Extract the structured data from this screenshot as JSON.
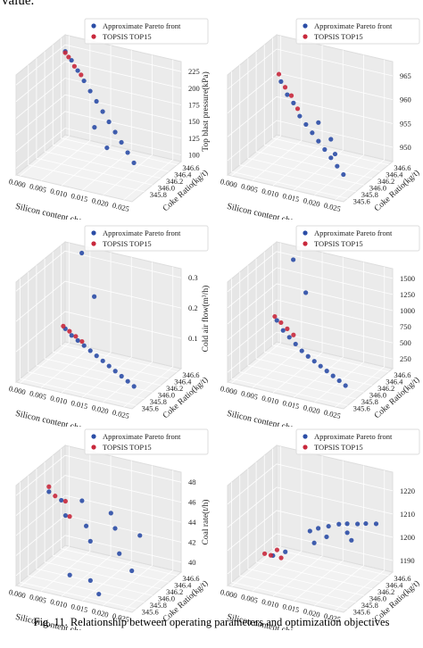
{
  "page_text": "value.",
  "caption": "Fig. 11. Relationship between operating parameters and optimization objectives",
  "chart_data": [
    {
      "type": "scatter3d",
      "xlabel": "Silicon content change(%)",
      "ylabel": "Coke Ratio(kg/t)",
      "zlabel": "Top blast pressure(kPa)",
      "legend": "upper right",
      "xlim": [
        -0.001,
        0.027
      ],
      "ylim": [
        345.5,
        346.7
      ],
      "zlim": [
        90,
        240
      ],
      "xticks": [
        {
          "value": 0,
          "label": "0.000"
        },
        {
          "value": 0.005,
          "label": "0.005"
        },
        {
          "value": 0.01,
          "label": "0.010"
        },
        {
          "value": 0.015,
          "label": "0.015"
        },
        {
          "value": 0.02,
          "label": "0.020"
        },
        {
          "value": 0.025,
          "label": "0.025"
        }
      ],
      "yticks": [
        {
          "value": 345.8,
          "label": "345.8"
        },
        {
          "value": 346.0,
          "label": "346.0"
        },
        {
          "value": 346.2,
          "label": "346.2"
        },
        {
          "value": 346.4,
          "label": "346.4"
        },
        {
          "value": 346.6,
          "label": "346.6"
        }
      ],
      "zticks": [
        100,
        125,
        150,
        175,
        200,
        225
      ],
      "series": [
        {
          "name": "Approximate Pareto front",
          "color": "#2b4da6",
          "x": [
            0.001,
            0.003,
            0.005,
            0.007,
            0.009,
            0.011,
            0.013,
            0.015,
            0.017,
            0.019,
            0.021,
            0.023,
            0.012,
            0.016
          ],
          "y": [
            346.5,
            346.45,
            346.4,
            346.35,
            346.3,
            346.25,
            346.2,
            346.15,
            346.1,
            346.05,
            346.0,
            345.95,
            346.1,
            346.0
          ],
          "values": [
            228,
            220,
            210,
            200,
            190,
            180,
            170,
            160,
            150,
            140,
            130,
            120,
            150,
            130
          ]
        },
        {
          "name": "TOPSIS TOP15",
          "color": "#c8283c",
          "x": [
            0.001,
            0.002,
            0.004,
            0.006
          ],
          "y": [
            346.5,
            346.48,
            346.42,
            346.38
          ],
          "values": [
            226,
            222,
            214,
            206
          ]
        }
      ]
    },
    {
      "type": "scatter3d",
      "xlabel": "Silicon content change(%)",
      "ylabel": "Coke Ratio(kg/t)",
      "legend": "upper right",
      "xlim": [
        -0.001,
        0.027
      ],
      "ylim": [
        345.5,
        346.7
      ],
      "zlim": [
        947,
        968
      ],
      "xticks": [
        {
          "value": 0,
          "label": "0.000"
        },
        {
          "value": 0.005,
          "label": "0.005"
        },
        {
          "value": 0.01,
          "label": "0.010"
        },
        {
          "value": 0.015,
          "label": "0.015"
        },
        {
          "value": 0.02,
          "label": "0.020"
        },
        {
          "value": 0.025,
          "label": "0.025"
        }
      ],
      "yticks": [
        {
          "value": 345.6,
          "label": "345.6"
        },
        {
          "value": 345.8,
          "label": "345.8"
        },
        {
          "value": 346.0,
          "label": "346.0"
        },
        {
          "value": 346.2,
          "label": "346.2"
        },
        {
          "value": 346.4,
          "label": "346.4"
        },
        {
          "value": 346.6,
          "label": "346.6"
        }
      ],
      "zticks": [
        950,
        955,
        960,
        965
      ],
      "series": [
        {
          "name": "Approximate Pareto front",
          "color": "#2b4da6",
          "x": [
            0.004,
            0.006,
            0.008,
            0.01,
            0.012,
            0.014,
            0.016,
            0.018,
            0.02,
            0.022,
            0.024,
            0.015,
            0.019,
            0.021
          ],
          "y": [
            346.3,
            346.25,
            346.2,
            346.15,
            346.1,
            346.05,
            346.0,
            345.95,
            345.9,
            345.85,
            345.8,
            346.1,
            346.0,
            345.9
          ],
          "values": [
            962,
            960,
            959,
            957,
            956,
            955,
            954,
            953,
            952,
            951,
            950,
            957,
            955,
            953
          ]
        },
        {
          "name": "TOPSIS TOP15",
          "color": "#c8283c",
          "x": [
            0.003,
            0.005,
            0.007,
            0.009
          ],
          "y": [
            346.35,
            346.3,
            346.25,
            346.2
          ],
          "values": [
            963,
            961,
            960,
            958
          ]
        }
      ]
    },
    {
      "type": "scatter3d",
      "xlabel": "Silicon content change(%)",
      "ylabel": "Coke Ratio(kg/t)",
      "zlabel": "Cold air flow(m³/h)",
      "legend": "upper right",
      "xlim": [
        -0.001,
        0.027
      ],
      "ylim": [
        345.5,
        346.7
      ],
      "zlim": [
        0,
        0.33
      ],
      "xticks": [
        {
          "value": 0,
          "label": "0.000"
        },
        {
          "value": 0.005,
          "label": "0.005"
        },
        {
          "value": 0.01,
          "label": "0.010"
        },
        {
          "value": 0.015,
          "label": "0.015"
        },
        {
          "value": 0.02,
          "label": "0.020"
        },
        {
          "value": 0.025,
          "label": "0.025"
        }
      ],
      "yticks": [
        {
          "value": 345.6,
          "label": "345.6"
        },
        {
          "value": 345.8,
          "label": "345.8"
        },
        {
          "value": 346.0,
          "label": "346.0"
        },
        {
          "value": 346.2,
          "label": "346.2"
        },
        {
          "value": 346.4,
          "label": "346.4"
        },
        {
          "value": 346.6,
          "label": "346.6"
        }
      ],
      "zticks": [
        0.1,
        0.2,
        0.3
      ],
      "series": [
        {
          "name": "Approximate Pareto front",
          "color": "#2b4da6",
          "x": [
            0.003,
            0.005,
            0.007,
            0.009,
            0.011,
            0.013,
            0.015,
            0.017,
            0.019,
            0.021,
            0.023,
            0.025,
            0.004,
            0.008
          ],
          "y": [
            346.3,
            346.25,
            346.2,
            346.15,
            346.1,
            346.05,
            346.0,
            345.95,
            345.9,
            345.85,
            345.8,
            345.75,
            346.6,
            346.5
          ],
          "values": [
            0.1,
            0.09,
            0.085,
            0.08,
            0.075,
            0.07,
            0.065,
            0.06,
            0.055,
            0.05,
            0.045,
            0.04,
            0.32,
            0.2
          ]
        },
        {
          "name": "TOPSIS TOP15",
          "color": "#c8283c",
          "x": [
            0.002,
            0.004,
            0.006,
            0.008
          ],
          "y": [
            346.35,
            346.3,
            346.25,
            346.2
          ],
          "values": [
            0.1,
            0.095,
            0.09,
            0.085
          ]
        }
      ]
    },
    {
      "type": "scatter3d",
      "xlabel": "Silicon content change(%)",
      "ylabel": "Coke Ratio(kg/t)",
      "legend": "upper right",
      "xlim": [
        -0.001,
        0.027
      ],
      "ylim": [
        345.5,
        346.7
      ],
      "zlim": [
        100,
        1650
      ],
      "xticks": [
        {
          "value": 0,
          "label": "0.000"
        },
        {
          "value": 0.005,
          "label": "0.005"
        },
        {
          "value": 0.01,
          "label": "0.010"
        },
        {
          "value": 0.015,
          "label": "0.015"
        },
        {
          "value": 0.02,
          "label": "0.020"
        },
        {
          "value": 0.025,
          "label": "0.025"
        }
      ],
      "yticks": [
        {
          "value": 345.6,
          "label": "345.6"
        },
        {
          "value": 345.8,
          "label": "345.8"
        },
        {
          "value": 346.0,
          "label": "346.0"
        },
        {
          "value": 346.2,
          "label": "346.2"
        },
        {
          "value": 346.4,
          "label": "346.4"
        },
        {
          "value": 346.6,
          "label": "346.6"
        }
      ],
      "zticks": [
        250,
        500,
        750,
        1000,
        1250,
        1500
      ],
      "series": [
        {
          "name": "Approximate Pareto front",
          "color": "#2b4da6",
          "x": [
            0.003,
            0.005,
            0.007,
            0.009,
            0.011,
            0.013,
            0.015,
            0.017,
            0.019,
            0.021,
            0.023,
            0.025,
            0.004,
            0.008
          ],
          "y": [
            346.3,
            346.25,
            346.2,
            346.15,
            346.1,
            346.05,
            346.0,
            345.95,
            345.9,
            345.85,
            345.8,
            345.75,
            346.6,
            346.5
          ],
          "values": [
            700,
            600,
            550,
            500,
            450,
            420,
            400,
            380,
            360,
            340,
            320,
            300,
            1500,
            1100
          ]
        },
        {
          "name": "TOPSIS TOP15",
          "color": "#c8283c",
          "x": [
            0.002,
            0.004,
            0.006,
            0.008
          ],
          "y": [
            346.35,
            346.3,
            346.25,
            346.2
          ],
          "values": [
            720,
            680,
            640,
            600
          ]
        }
      ]
    },
    {
      "type": "scatter3d",
      "xlabel": "Silicon content change(%)",
      "ylabel": "Coke Ratio(kg/t)",
      "zlabel": "Coal rate(t/h)",
      "legend": "upper right",
      "xlim": [
        -0.001,
        0.027
      ],
      "ylim": [
        345.5,
        346.7
      ],
      "zlim": [
        39,
        49
      ],
      "xticks": [
        {
          "value": 0,
          "label": "0.000"
        },
        {
          "value": 0.005,
          "label": "0.005"
        },
        {
          "value": 0.01,
          "label": "0.010"
        },
        {
          "value": 0.015,
          "label": "0.015"
        },
        {
          "value": 0.02,
          "label": "0.020"
        },
        {
          "value": 0.025,
          "label": "0.025"
        }
      ],
      "yticks": [
        {
          "value": 345.6,
          "label": "345.6"
        },
        {
          "value": 345.8,
          "label": "345.8"
        },
        {
          "value": 346.0,
          "label": "346.0"
        },
        {
          "value": 346.2,
          "label": "346.2"
        },
        {
          "value": 346.4,
          "label": "346.4"
        },
        {
          "value": 346.6,
          "label": "346.6"
        }
      ],
      "zticks": [
        40,
        42,
        44,
        46,
        48
      ],
      "series": [
        {
          "name": "Approximate Pareto front",
          "color": "#2b4da6",
          "x": [
            0.002,
            0.004,
            0.006,
            0.008,
            0.01,
            0.012,
            0.014,
            0.016,
            0.018,
            0.02,
            0.022,
            0.009,
            0.013,
            0.017
          ],
          "y": [
            346.0,
            346.1,
            346.0,
            346.2,
            346.1,
            346.0,
            346.3,
            346.2,
            346.1,
            346.4,
            346.0,
            345.8,
            345.9,
            345.7
          ],
          "values": [
            47,
            46,
            45,
            46,
            44,
            43,
            45,
            44,
            42,
            43,
            41,
            40,
            39.5,
            39.2
          ]
        },
        {
          "name": "TOPSIS TOP15",
          "color": "#c8283c",
          "x": [
            0.002,
            0.003,
            0.005,
            0.007
          ],
          "y": [
            346.0,
            346.05,
            346.1,
            346.0
          ],
          "values": [
            47.5,
            46.5,
            46,
            45
          ]
        }
      ]
    },
    {
      "type": "scatter3d",
      "xlabel": "Silicon content change(%)",
      "ylabel": "Coke Ratio(kg/t)",
      "legend": "upper right",
      "xlim": [
        -0.001,
        0.027
      ],
      "ylim": [
        345.5,
        346.7
      ],
      "zlim": [
        1185,
        1228
      ],
      "xticks": [
        {
          "value": 0,
          "label": "0.000"
        },
        {
          "value": 0.005,
          "label": "0.005"
        },
        {
          "value": 0.01,
          "label": "0.010"
        },
        {
          "value": 0.015,
          "label": "0.015"
        },
        {
          "value": 0.02,
          "label": "0.020"
        },
        {
          "value": 0.025,
          "label": "0.025"
        }
      ],
      "yticks": [
        {
          "value": 345.6,
          "label": "345.6"
        },
        {
          "value": 345.8,
          "label": "345.8"
        },
        {
          "value": 346.0,
          "label": "346.0"
        },
        {
          "value": 346.2,
          "label": "346.2"
        },
        {
          "value": 346.4,
          "label": "346.4"
        },
        {
          "value": 346.6,
          "label": "346.6"
        }
      ],
      "zticks": [
        1190,
        1200,
        1210,
        1220
      ],
      "series": [
        {
          "name": "Approximate Pareto front",
          "color": "#2b4da6",
          "x": [
            0.01,
            0.012,
            0.014,
            0.016,
            0.018,
            0.02,
            0.022,
            0.024,
            0.015,
            0.019,
            0.013,
            0.008,
            0.006,
            0.021
          ],
          "y": [
            346.4,
            346.4,
            346.45,
            346.5,
            346.5,
            346.55,
            346.55,
            346.6,
            346.3,
            346.4,
            346.2,
            346.0,
            345.9,
            346.3
          ],
          "values": [
            1200,
            1202,
            1203,
            1204,
            1205,
            1205,
            1206,
            1206,
            1201,
            1203,
            1199,
            1196,
            1195,
            1202
          ]
        },
        {
          "name": "TOPSIS TOP15",
          "color": "#c8283c",
          "x": [
            0.004,
            0.005,
            0.006,
            0.007
          ],
          "y": [
            345.9,
            345.95,
            346.0,
            346.0
          ],
          "values": [
            1195,
            1194,
            1196,
            1193
          ]
        }
      ]
    }
  ]
}
